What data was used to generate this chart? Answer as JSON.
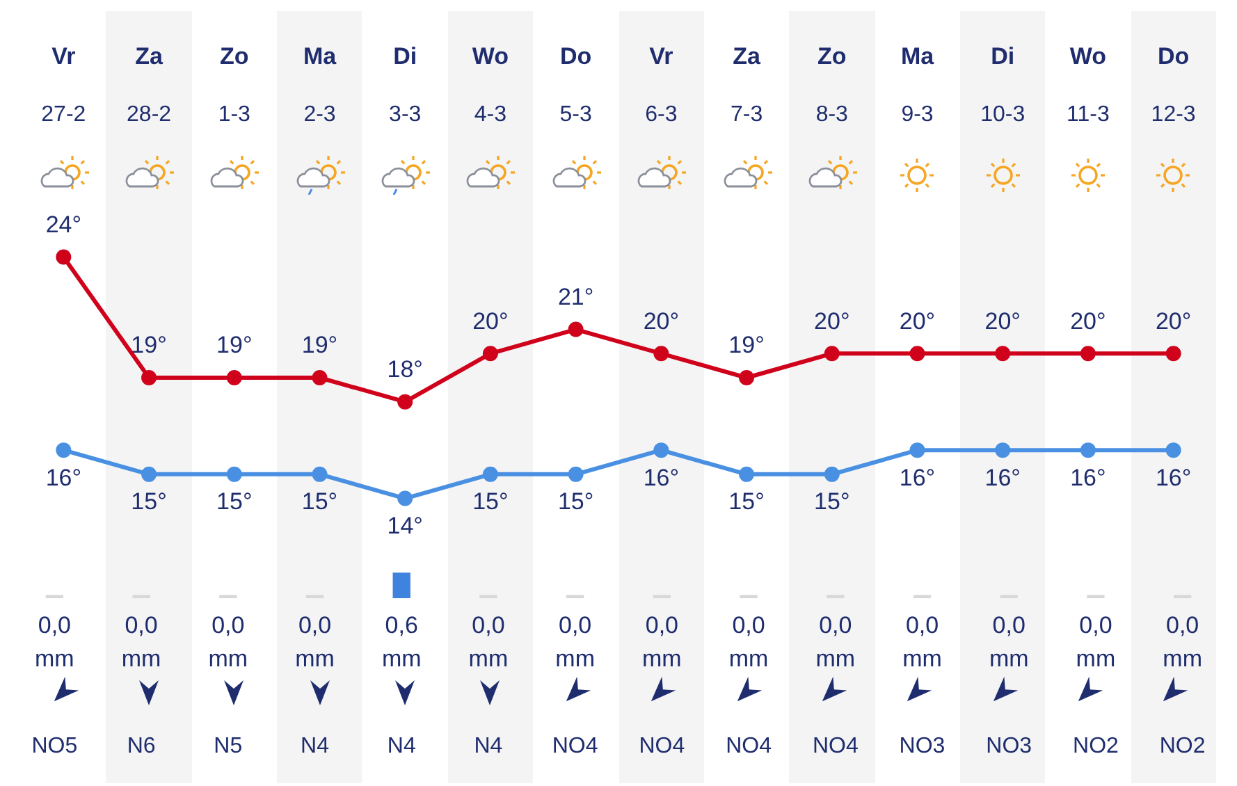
{
  "chart_data": [
    {
      "type": "line",
      "categories": [
        "27-2",
        "28-2",
        "1-3",
        "2-3",
        "3-3",
        "4-3",
        "5-3",
        "6-3",
        "7-3",
        "8-3",
        "9-3",
        "10-3",
        "11-3",
        "12-3"
      ],
      "series": [
        {
          "color": "#d0021b",
          "values": [
            24,
            19,
            19,
            19,
            18,
            20,
            21,
            20,
            19,
            20,
            20,
            20,
            20,
            20
          ],
          "value_labels": [
            "24°",
            "19°",
            "19°",
            "19°",
            "18°",
            "20°",
            "21°",
            "20°",
            "19°",
            "20°",
            "20°",
            "20°",
            "20°",
            "20°"
          ]
        },
        {
          "color": "#4a90e2",
          "values": [
            16,
            15,
            15,
            15,
            14,
            15,
            15,
            16,
            15,
            15,
            16,
            16,
            16,
            16
          ],
          "value_labels": [
            "16°",
            "15°",
            "15°",
            "15°",
            "14°",
            "15°",
            "15°",
            "16°",
            "15°",
            "15°",
            "16°",
            "16°",
            "16°",
            "16°"
          ]
        }
      ],
      "marker": "circle",
      "tick_labels": "x",
      "annotations": [
        "Vr",
        "Za",
        "Zo",
        "Ma",
        "Di",
        "Wo",
        "Do",
        "Vr",
        "Za",
        "Zo",
        "Ma",
        "Di",
        "Wo",
        "Do"
      ]
    },
    {
      "type": "bar",
      "categories": [
        null,
        null,
        null,
        null,
        null,
        null,
        null,
        null,
        null,
        null,
        null,
        null,
        null,
        null
      ],
      "values": [
        0,
        0,
        0,
        0,
        0.6,
        0,
        0,
        0,
        0,
        0,
        0,
        0,
        0,
        0
      ],
      "colors": [
        "#d8d8d8",
        "#d8d8d8",
        "#d8d8d8",
        "#d8d8d8",
        "#3f83de",
        "#d8d8d8",
        "#d8d8d8",
        "#d8d8d8",
        "#d8d8d8",
        "#d8d8d8",
        "#d8d8d8",
        "#d8d8d8",
        "#d8d8d8",
        "#d8d8d8"
      ],
      "value_labels": [
        "0,0",
        "0,0",
        "0,0",
        "0,0",
        "0,6",
        "0,0",
        "0,0",
        "0,0",
        "0,0",
        "0,0",
        "0,0",
        "0,0",
        "0,0",
        "0,0"
      ],
      "tick_labels": false,
      "annotations": [
        "mm",
        "mm",
        "mm",
        "mm",
        "mm",
        "mm",
        "mm",
        "mm",
        "mm",
        "mm",
        "mm",
        "mm",
        "mm",
        "mm",
        "NO5",
        "N6",
        "N5",
        "N4",
        "N4",
        "N4",
        "NO4",
        "NO4",
        "NO4",
        "NO4",
        "NO3",
        "NO3",
        "NO2",
        "NO2"
      ]
    }
  ]
}
